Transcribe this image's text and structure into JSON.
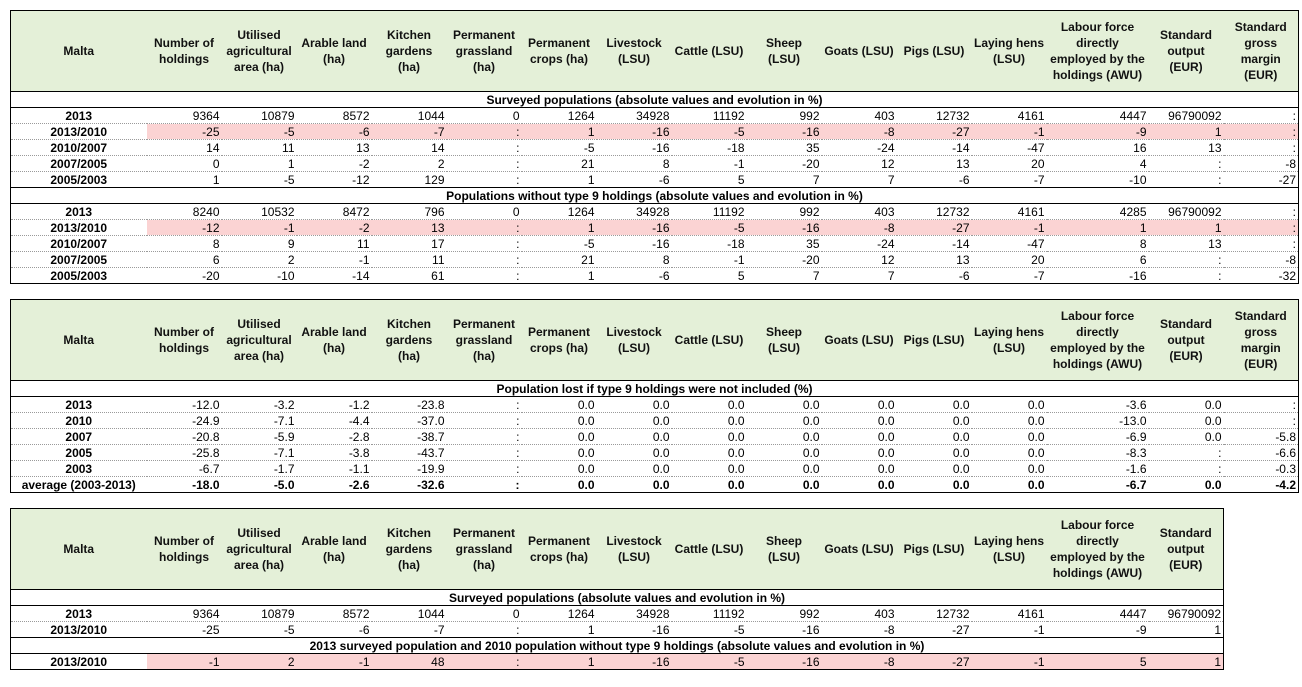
{
  "colors": {
    "header_bg": "#e4f0d8",
    "highlight_bg": "#fbd3d3"
  },
  "headers": [
    "Malta",
    "Number of holdings",
    "Utilised agricultural area (ha)",
    "Arable land (ha)",
    "Kitchen gardens (ha)",
    "Permanent grassland (ha)",
    "Permanent crops (ha)",
    "Livestock (LSU)",
    "Cattle (LSU)",
    "Sheep (LSU)",
    "Goats (LSU)",
    "Pigs (LSU)",
    "Laying hens (LSU)",
    "Labour force directly employed by the holdings (AWU)",
    "Standard output (EUR)",
    "Standard gross margin (EUR)"
  ],
  "tables": [
    {
      "sections": [
        {
          "title": "Surveyed populations (absolute values and evolution in %)",
          "rows": [
            {
              "cells": [
                "2013",
                "9364",
                "10879",
                "8572",
                "1044",
                "0",
                "1264",
                "34928",
                "11192",
                "992",
                "403",
                "12732",
                "4161",
                "4447",
                "96790092",
                ":"
              ]
            },
            {
              "highlight": true,
              "cells": [
                "2013/2010",
                "-25",
                "-5",
                "-6",
                "-7",
                ":",
                "1",
                "-16",
                "-5",
                "-16",
                "-8",
                "-27",
                "-1",
                "-9",
                "1",
                ":"
              ]
            },
            {
              "cells": [
                "2010/2007",
                "14",
                "11",
                "13",
                "14",
                ":",
                "-5",
                "-16",
                "-18",
                "35",
                "-24",
                "-14",
                "-47",
                "16",
                "13",
                ":"
              ]
            },
            {
              "cells": [
                "2007/2005",
                "0",
                "1",
                "-2",
                "2",
                ":",
                "21",
                "8",
                "-1",
                "-20",
                "12",
                "13",
                "20",
                "4",
                ":",
                "-8"
              ]
            },
            {
              "cells": [
                "2005/2003",
                "1",
                "-5",
                "-12",
                "129",
                ":",
                "1",
                "-6",
                "5",
                "7",
                "7",
                "-6",
                "-7",
                "-10",
                ":",
                "-27"
              ]
            }
          ]
        },
        {
          "title": "Populations without type 9 holdings (absolute values and evolution in %)",
          "rows": [
            {
              "cells": [
                "2013",
                "8240",
                "10532",
                "8472",
                "796",
                "0",
                "1264",
                "34928",
                "11192",
                "992",
                "403",
                "12732",
                "4161",
                "4285",
                "96790092",
                ":"
              ]
            },
            {
              "highlight": true,
              "cells": [
                "2013/2010",
                "-12",
                "-1",
                "-2",
                "13",
                ":",
                "1",
                "-16",
                "-5",
                "-16",
                "-8",
                "-27",
                "-1",
                "1",
                "1",
                ":"
              ]
            },
            {
              "cells": [
                "2010/2007",
                "8",
                "9",
                "11",
                "17",
                ":",
                "-5",
                "-16",
                "-18",
                "35",
                "-24",
                "-14",
                "-47",
                "8",
                "13",
                ":"
              ]
            },
            {
              "cells": [
                "2007/2005",
                "6",
                "2",
                "-1",
                "11",
                ":",
                "21",
                "8",
                "-1",
                "-20",
                "12",
                "13",
                "20",
                "6",
                ":",
                "-8"
              ]
            },
            {
              "cells": [
                "2005/2003",
                "-20",
                "-10",
                "-14",
                "61",
                ":",
                "1",
                "-6",
                "5",
                "7",
                "7",
                "-6",
                "-7",
                "-16",
                ":",
                "-32"
              ]
            }
          ]
        }
      ]
    },
    {
      "sections": [
        {
          "title": "Population lost if type 9 holdings were not included (%)",
          "rows": [
            {
              "cells": [
                "2013",
                "-12.0",
                "-3.2",
                "-1.2",
                "-23.8",
                ":",
                "0.0",
                "0.0",
                "0.0",
                "0.0",
                "0.0",
                "0.0",
                "0.0",
                "-3.6",
                "0.0",
                ":"
              ]
            },
            {
              "cells": [
                "2010",
                "-24.9",
                "-7.1",
                "-4.4",
                "-37.0",
                ":",
                "0.0",
                "0.0",
                "0.0",
                "0.0",
                "0.0",
                "0.0",
                "0.0",
                "-13.0",
                "0.0",
                ":"
              ]
            },
            {
              "cells": [
                "2007",
                "-20.8",
                "-5.9",
                "-2.8",
                "-38.7",
                ":",
                "0.0",
                "0.0",
                "0.0",
                "0.0",
                "0.0",
                "0.0",
                "0.0",
                "-6.9",
                "0.0",
                "-5.8"
              ]
            },
            {
              "cells": [
                "2005",
                "-25.8",
                "-7.1",
                "-3.8",
                "-43.7",
                ":",
                "0.0",
                "0.0",
                "0.0",
                "0.0",
                "0.0",
                "0.0",
                "0.0",
                "-8.3",
                ":",
                "-6.6"
              ]
            },
            {
              "cells": [
                "2003",
                "-6.7",
                "-1.7",
                "-1.1",
                "-19.9",
                ":",
                "0.0",
                "0.0",
                "0.0",
                "0.0",
                "0.0",
                "0.0",
                "0.0",
                "-1.6",
                ":",
                "-0.3"
              ]
            },
            {
              "bold": true,
              "cells": [
                "average (2003-2013)",
                "-18.0",
                "-5.0",
                "-2.6",
                "-32.6",
                ":",
                "0.0",
                "0.0",
                "0.0",
                "0.0",
                "0.0",
                "0.0",
                "0.0",
                "-6.7",
                "0.0",
                "-4.2"
              ]
            }
          ]
        }
      ]
    },
    {
      "sections": [
        {
          "title": "Surveyed populations (absolute values and evolution in %)",
          "rows": [
            {
              "cells": [
                "2013",
                "9364",
                "10879",
                "8572",
                "1044",
                "0",
                "1264",
                "34928",
                "11192",
                "992",
                "403",
                "12732",
                "4161",
                "4447",
                "96790092"
              ]
            },
            {
              "cells": [
                "2013/2010",
                "-25",
                "-5",
                "-6",
                "-7",
                ":",
                "1",
                "-16",
                "-5",
                "-16",
                "-8",
                "-27",
                "-1",
                "-9",
                "1"
              ]
            }
          ]
        },
        {
          "title": "2013 surveyed population  and 2010 population without type 9 holdings (absolute values and evolution in %)",
          "rows": [
            {
              "highlight": true,
              "cells": [
                "2013/2010",
                "-1",
                "2",
                "-1",
                "48",
                ":",
                "1",
                "-16",
                "-5",
                "-16",
                "-8",
                "-27",
                "-1",
                "5",
                "1"
              ]
            }
          ]
        }
      ]
    }
  ]
}
